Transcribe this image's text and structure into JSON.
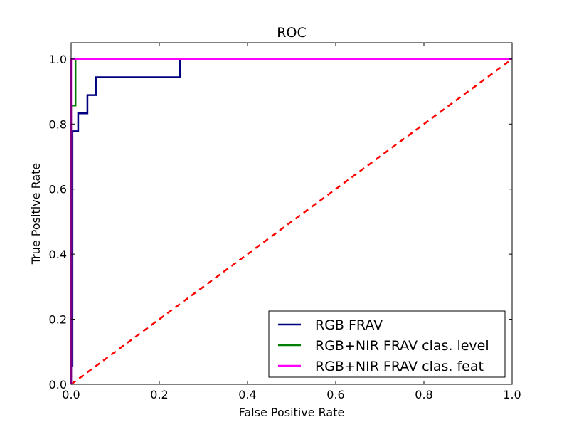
{
  "chart_data": {
    "type": "line",
    "title": "ROC",
    "xlabel": "False Positive Rate",
    "ylabel": "True Positive Rate",
    "xlim": [
      0,
      1
    ],
    "ylim": [
      0,
      1.05
    ],
    "x_ticks": [
      "0.0",
      "0.2",
      "0.4",
      "0.6",
      "0.8",
      "1.0"
    ],
    "y_ticks": [
      "0.0",
      "0.2",
      "0.4",
      "0.6",
      "0.8",
      "1.0"
    ],
    "grid": false,
    "legend_position": "lower-right",
    "series": [
      {
        "name": "RGB FRAV",
        "color": "#00007f",
        "x": [
          0,
          0,
          0.003,
          0.003,
          0.016,
          0.016,
          0.037,
          0.037,
          0.056,
          0.056,
          0.247,
          0.247,
          1.0
        ],
        "y": [
          0,
          0.056,
          0.056,
          0.778,
          0.778,
          0.833,
          0.833,
          0.889,
          0.889,
          0.944,
          0.944,
          1.0,
          1.0
        ]
      },
      {
        "name": "RGB+NIR FRAV clas. level",
        "color": "#007f00",
        "x": [
          0,
          0,
          0.01,
          0.01,
          1.0
        ],
        "y": [
          0,
          0.857,
          0.857,
          1.0,
          1.0
        ]
      },
      {
        "name": "RGB+NIR FRAV clas. feat",
        "color": "#ff00ff",
        "x": [
          0,
          0,
          1.0
        ],
        "y": [
          0,
          1.0,
          1.0
        ]
      }
    ],
    "reference_line": {
      "x": [
        0,
        1
      ],
      "y": [
        0,
        1
      ],
      "color": "#ff0000",
      "style": "dashed"
    }
  }
}
